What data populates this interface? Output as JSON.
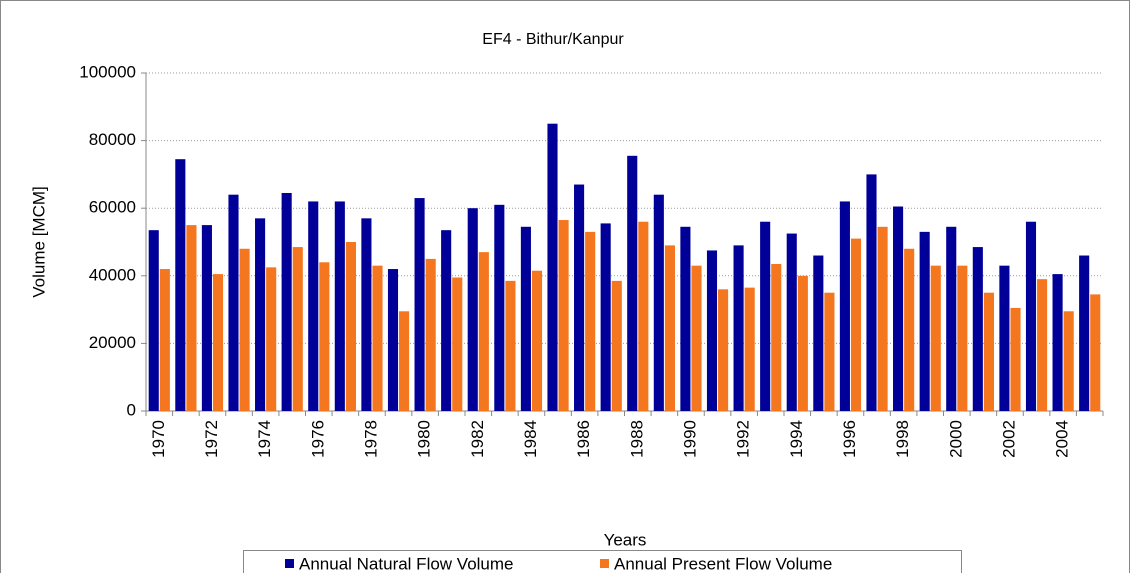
{
  "chart_data": {
    "type": "bar",
    "title": "EF4 - Bithur/Kanpur",
    "x_label": "Years",
    "y_label": "Volume [MCM]",
    "categories": [
      "1970",
      null,
      "1972",
      null,
      "1974",
      null,
      "1976",
      null,
      "1978",
      null,
      "1980",
      null,
      "1982",
      null,
      "1984",
      null,
      "1986",
      null,
      "1988",
      null,
      "1990",
      null,
      "1992",
      null,
      "1994",
      null,
      "1996",
      null,
      "1998",
      null,
      "2000",
      null,
      "2002",
      null,
      "2004",
      null
    ],
    "series": [
      {
        "name": "Annual Natural Flow Volume",
        "color": "#000099",
        "values": [
          53500,
          74500,
          55000,
          64000,
          57000,
          64500,
          62000,
          62000,
          57000,
          42000,
          63000,
          53500,
          60000,
          61000,
          54500,
          85000,
          67000,
          55500,
          75500,
          64000,
          54500,
          47500,
          49000,
          56000,
          52500,
          46000,
          62000,
          70000,
          60500,
          53000,
          54500,
          48500,
          43000,
          56000,
          40500,
          46000
        ]
      },
      {
        "name": "Annual Present Flow Volume",
        "color": "#f4761f",
        "values": [
          42000,
          55000,
          40500,
          48000,
          42500,
          48500,
          44000,
          50000,
          43000,
          29500,
          45000,
          39500,
          47000,
          38500,
          41500,
          56500,
          53000,
          38500,
          56000,
          49000,
          43000,
          36000,
          36500,
          43500,
          40000,
          35000,
          51000,
          54500,
          48000,
          43000,
          43000,
          35000,
          30500,
          39000,
          29500,
          34500
        ]
      }
    ],
    "ylim": [
      0,
      100000
    ],
    "yticks": [
      0,
      20000,
      40000,
      60000,
      80000,
      100000
    ],
    "grid": true,
    "legend": "bottom"
  }
}
